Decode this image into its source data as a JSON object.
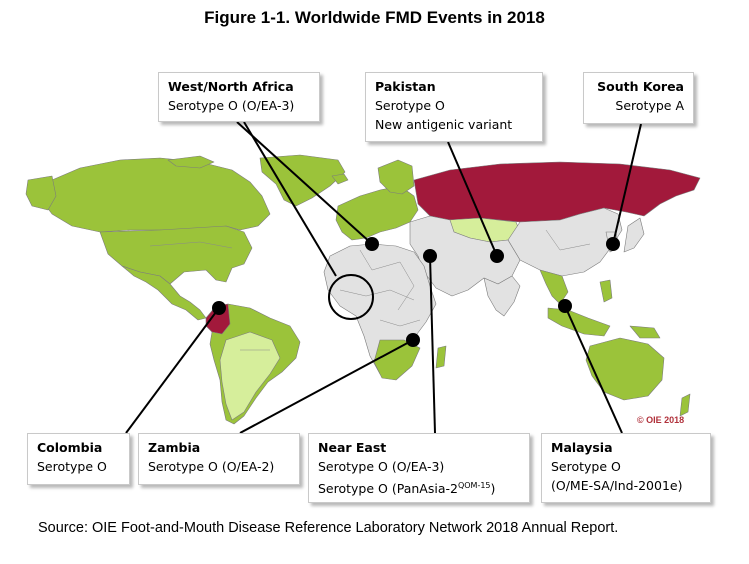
{
  "title": "Figure 1-1. Worldwide FMD Events in 2018",
  "copyright": "© OIE 2018",
  "source": "Source:  OIE Foot-and-Mouth Disease Reference Laboratory Network 2018 Annual Report.",
  "colors": {
    "endemic_green": "#9bc33a",
    "light_green": "#d6ee9b",
    "free_grey": "#e2e2e2",
    "outbreak_red": "#a2193b",
    "ocean": "#ffffff",
    "border": "#7c7c7c"
  },
  "callouts": {
    "west_north_africa": {
      "name": "West/North Africa",
      "line1": "Serotype O (O/EA-3)"
    },
    "pakistan": {
      "name": "Pakistan",
      "line1": "Serotype O",
      "line2": "New antigenic variant"
    },
    "south_korea": {
      "name": "South Korea",
      "line1": "Serotype A"
    },
    "colombia": {
      "name": "Colombia",
      "line1": "Serotype O"
    },
    "zambia": {
      "name": "Zambia",
      "line1": "Serotype O (O/EA-2)"
    },
    "near_east": {
      "name": "Near East",
      "line1": "Serotype O (O/EA-3)",
      "line2_prefix": "Serotype O (PanAsia-2",
      "line2_sup": "QOM-15",
      "line2_suffix": ")"
    },
    "malaysia": {
      "name": "Malaysia",
      "line1": "Serotype O",
      "line2": "(O/ME-SA/Ind-2001e)"
    }
  }
}
